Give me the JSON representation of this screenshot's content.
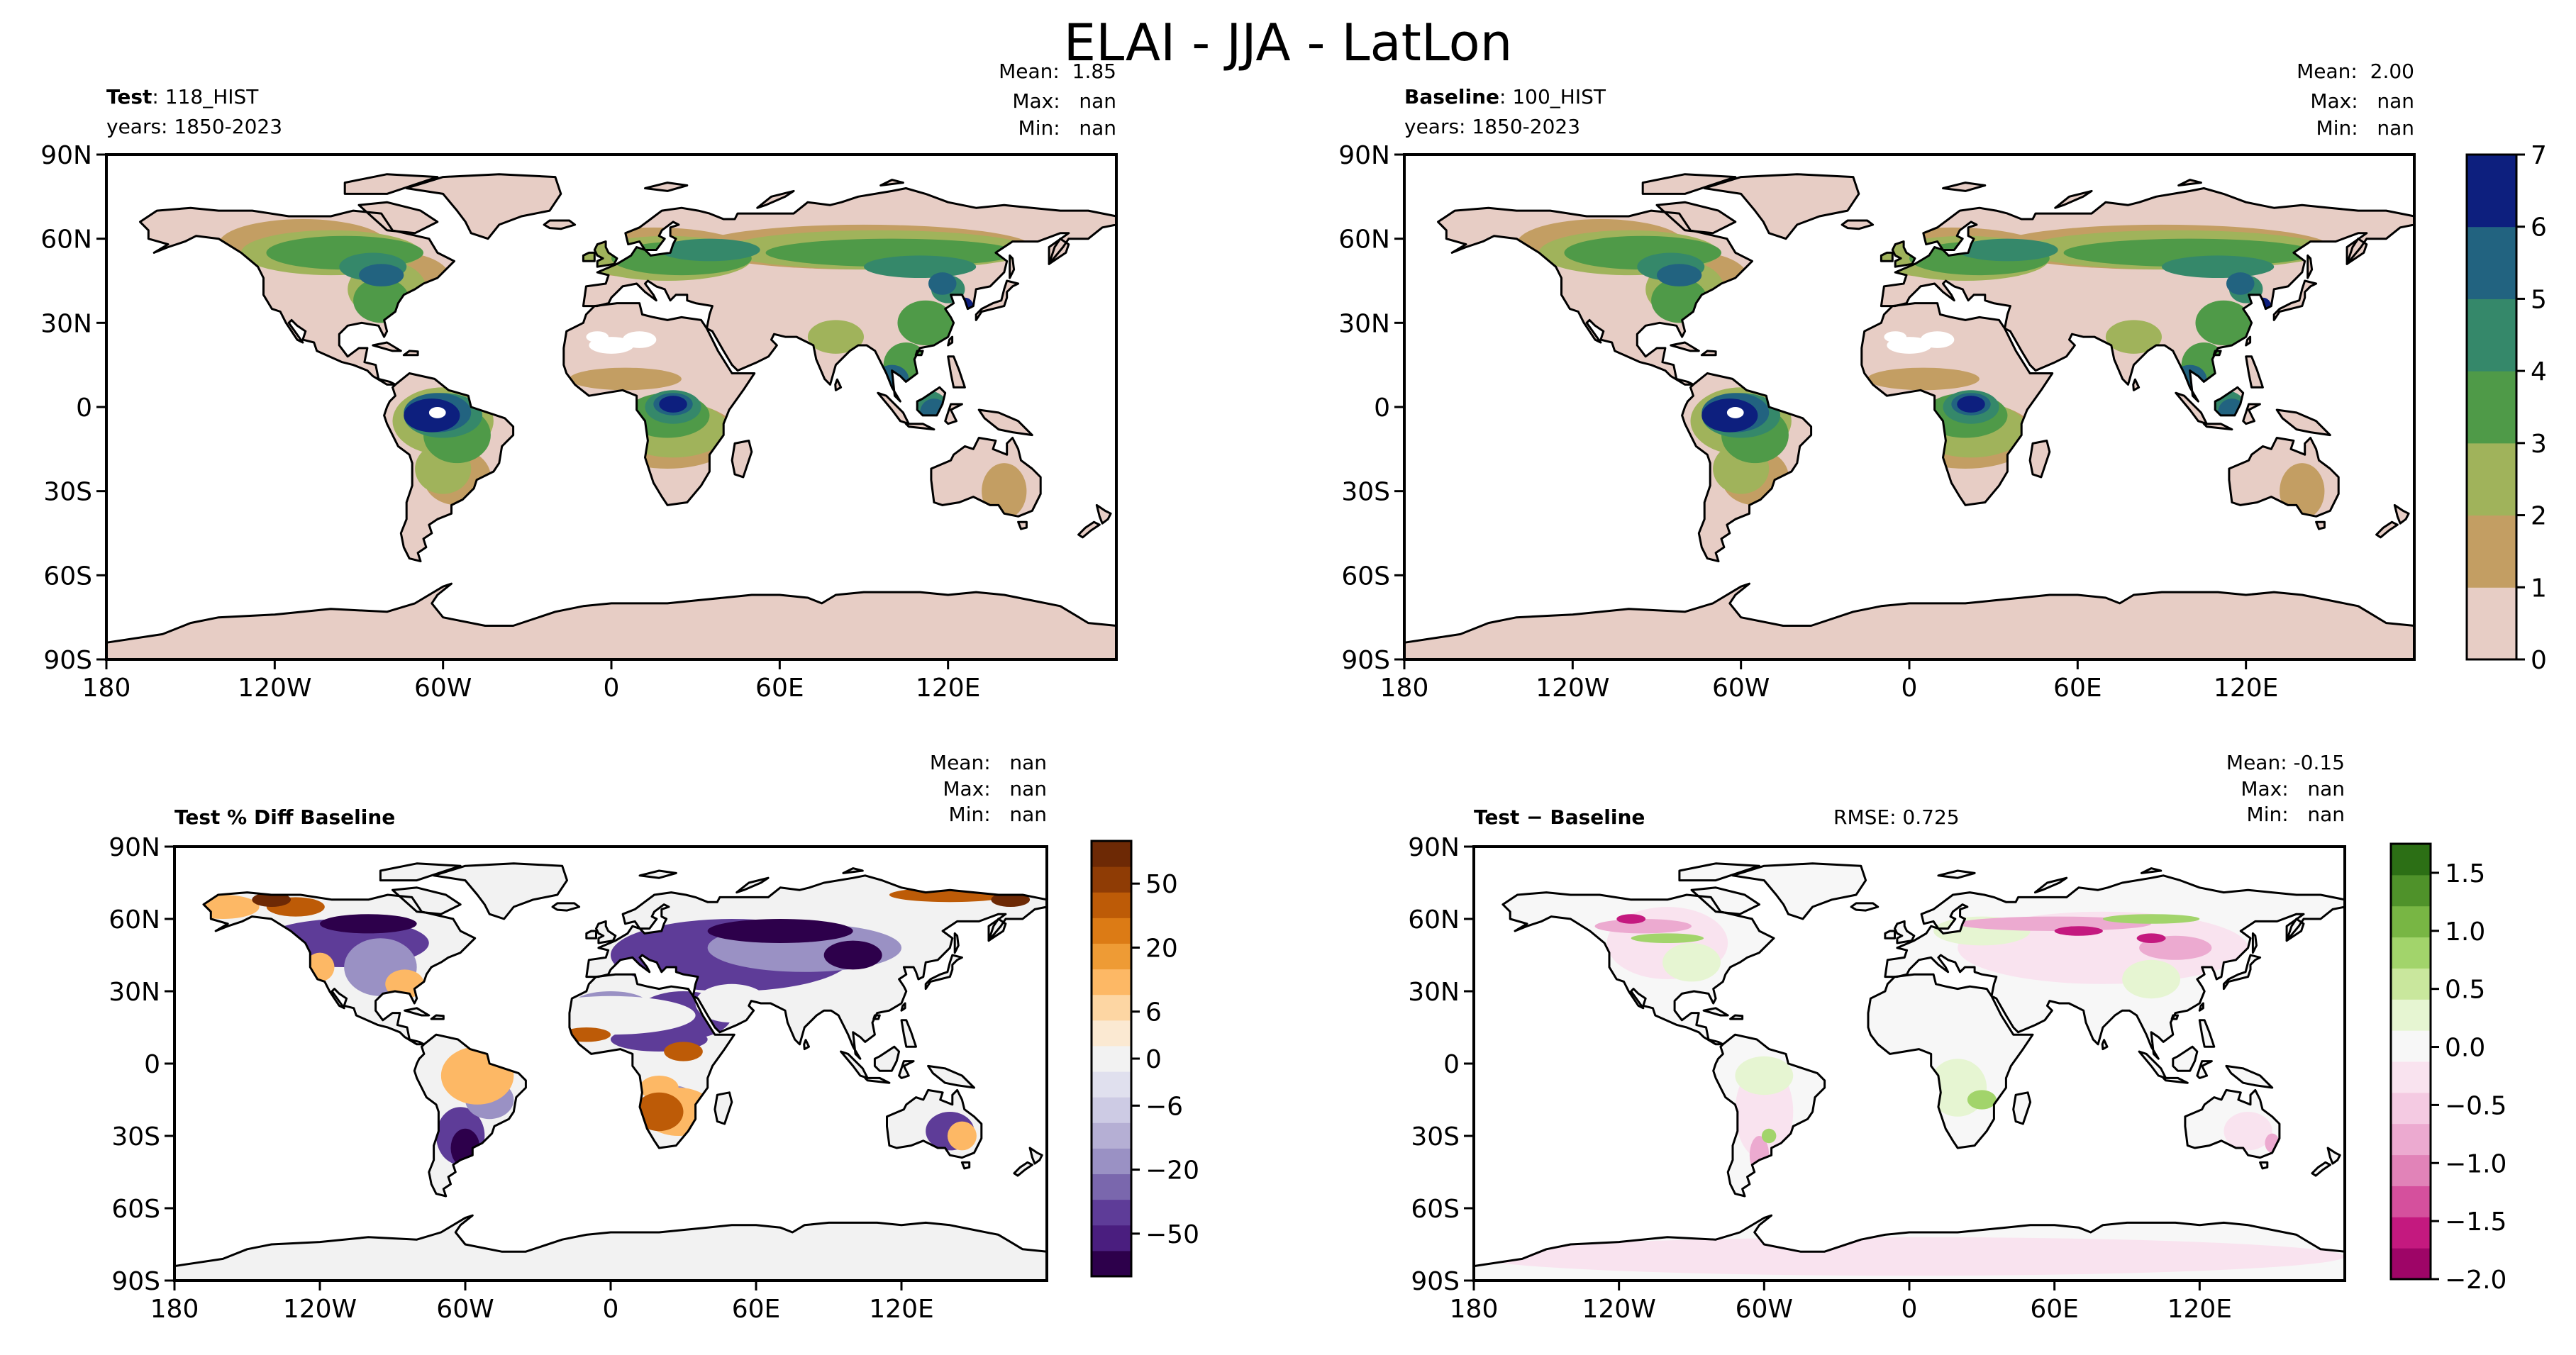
{
  "figure": {
    "title": "ELAI - JJA - LatLon"
  },
  "colors": {
    "land": "#e7cdc5",
    "ocean": "#ffffff",
    "coast": "#000000",
    "elai_levels": [
      "#e7cdc5",
      "#c39e63",
      "#a0b35b",
      "#4f9a48",
      "#35886a",
      "#226380",
      "#0d1f7e"
    ],
    "pctdiff_levels": [
      "#2d004b",
      "#4a1e7f",
      "#5e3c98",
      "#7a67ad",
      "#9a91c4",
      "#b5afd4",
      "#cdcbe4",
      "#e0e0ee",
      "#f2f2f2",
      "#fbe9d2",
      "#fdd6a3",
      "#fdb865",
      "#ee9b35",
      "#dc7b15",
      "#bd5b07",
      "#8f3c05",
      "#6d2905"
    ],
    "diff_levels": [
      "#9e0567",
      "#c4197f",
      "#d5509d",
      "#e183b8",
      "#ecaad0",
      "#f4cae2",
      "#f9e3ef",
      "#f7f7f7",
      "#e6f5d2",
      "#c9e79d",
      "#a2d46b",
      "#78b644",
      "#4f922a",
      "#2c6f15"
    ]
  },
  "axes_ticks": {
    "x": [
      "180",
      "120W",
      "60W",
      "0",
      "60E",
      "120E"
    ],
    "y": [
      "90N",
      "60N",
      "30N",
      "0",
      "30S",
      "60S",
      "90S"
    ]
  },
  "chart_data": [
    {
      "type": "heatmap",
      "panel": "test",
      "label_bold": "Test",
      "label_rest": ": 118_HIST",
      "years": "years: 1850-2023",
      "stats": {
        "mean": "Mean:  1.85",
        "max": "Max:   nan",
        "min": "Min:   nan"
      },
      "xlim": [
        -180,
        180
      ],
      "ylim": [
        -90,
        90
      ],
      "colorbar": null
    },
    {
      "type": "heatmap",
      "panel": "baseline",
      "label_bold": "Baseline",
      "label_rest": ": 100_HIST",
      "years": "years: 1850-2023",
      "stats": {
        "mean": "Mean:  2.00",
        "max": "Max:   nan",
        "min": "Min:   nan"
      },
      "xlim": [
        -180,
        180
      ],
      "ylim": [
        -90,
        90
      ],
      "colorbar": {
        "levels": [
          0,
          1,
          2,
          3,
          4,
          5,
          6,
          7
        ],
        "ticks": [
          "0",
          "1",
          "2",
          "3",
          "4",
          "5",
          "6",
          "7"
        ]
      }
    },
    {
      "type": "heatmap",
      "panel": "pct_diff",
      "label_bold": "Test % Diff Baseline",
      "stats": {
        "mean": "Mean:   nan",
        "max": "Max:   nan",
        "min": "Min:   nan"
      },
      "xlim": [
        -180,
        180
      ],
      "ylim": [
        -90,
        90
      ],
      "colorbar": {
        "ticks": [
          "50",
          "20",
          "6",
          "0",
          "−6",
          "−20",
          "−50"
        ]
      }
    },
    {
      "type": "heatmap",
      "panel": "diff",
      "label_bold": "Test − Baseline",
      "rmse": "RMSE: 0.725",
      "stats": {
        "mean": "Mean: -0.15",
        "max": "Max:   nan",
        "min": "Min:   nan"
      },
      "xlim": [
        -180,
        180
      ],
      "ylim": [
        -90,
        90
      ],
      "colorbar": {
        "range": [
          -2.0,
          1.75
        ],
        "ticks": [
          "1.5",
          "1.0",
          "0.5",
          "0.0",
          "−0.5",
          "−1.0",
          "−1.5",
          "−2.0"
        ]
      }
    }
  ]
}
